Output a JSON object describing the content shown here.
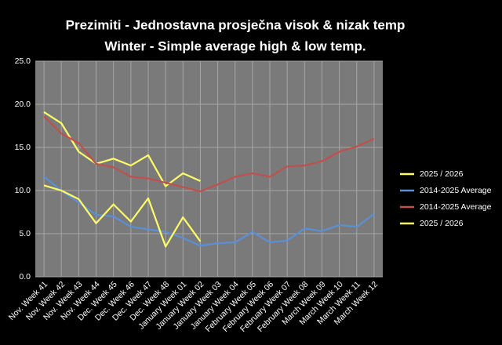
{
  "chart_data": {
    "type": "line",
    "title": [
      "Prezimiti - Jednostavna prosječna visok & nizak temp",
      "Winter - Simple average high & low temp."
    ],
    "categories": [
      "Nov. Week 41",
      "Nov. Week 42",
      "Nov. Week 43",
      "Nov. Week 44",
      "Dec. Week 45",
      "Dec. Week 46",
      "Dec. Week 47",
      "Dec. Week 48",
      "January Week 01",
      "January Week 02",
      "January Week 03",
      "January Week 04",
      "February Week 05",
      "February Week 06",
      "February Week 07",
      "February Week 08",
      "March Week 09",
      "March Week 10",
      "March Week 11",
      "March Week 12"
    ],
    "series": [
      {
        "name": "2025 / 2026",
        "color": "#ffff66",
        "values": [
          19.1,
          17.8,
          14.5,
          13.1,
          13.7,
          12.9,
          14.1,
          10.5,
          12.0,
          11.1,
          null,
          null,
          null,
          null,
          null,
          null,
          null,
          null,
          null,
          null
        ]
      },
      {
        "name": "2014-2025 Average",
        "color": "#5b8fd6",
        "values": [
          11.6,
          10.0,
          8.6,
          7.2,
          7.0,
          5.8,
          5.5,
          5.2,
          4.5,
          3.6,
          3.9,
          4.0,
          5.2,
          4.0,
          4.2,
          5.6,
          5.3,
          6.0,
          5.8,
          7.3
        ]
      },
      {
        "name": "2014-2025 Average",
        "color": "#c0504d",
        "values": [
          18.6,
          16.6,
          15.5,
          13.1,
          12.7,
          11.6,
          11.4,
          10.9,
          10.4,
          9.9,
          10.7,
          11.6,
          12.0,
          11.6,
          12.8,
          12.9,
          13.4,
          14.5,
          15.1,
          16.0
        ]
      },
      {
        "name": "2025 / 2026",
        "color": "#ffff66",
        "values": [
          10.6,
          10.0,
          9.0,
          6.2,
          8.4,
          6.4,
          9.1,
          3.5,
          6.9,
          4.1,
          null,
          null,
          null,
          null,
          null,
          null,
          null,
          null,
          null,
          null
        ]
      }
    ],
    "ylim": [
      0,
      25
    ],
    "yticks": [
      {
        "value": 0,
        "label": "0.0"
      },
      {
        "value": 5,
        "label": "5.0"
      },
      {
        "value": 10,
        "label": "10.0"
      },
      {
        "value": 15,
        "label": "15.0"
      },
      {
        "value": 20,
        "label": "20.0"
      },
      {
        "value": 25,
        "label": "25.0"
      }
    ],
    "grid": true,
    "legend": "right"
  }
}
